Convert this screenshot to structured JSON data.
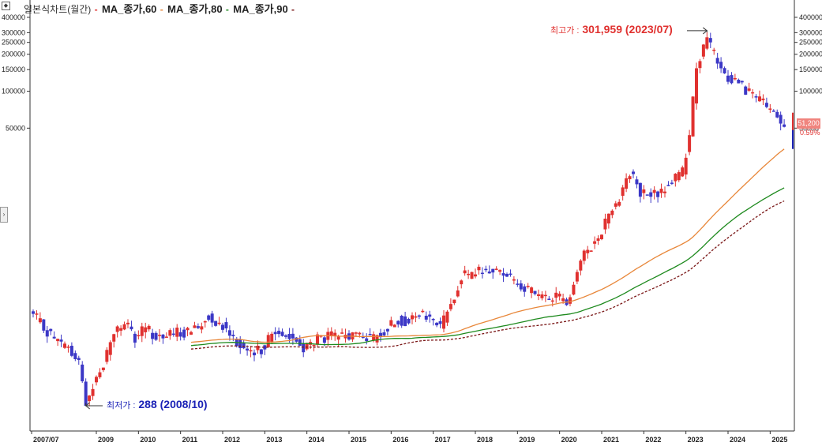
{
  "legend": {
    "title": "일본식차트(월간)",
    "ma60": "MA_종가,60",
    "ma80": "MA_종가,80",
    "ma90": "MA_종가,90"
  },
  "annotations": {
    "high_label": "최고가 :",
    "high_value": "301,959 (2023/07)",
    "low_label": "최저가 :",
    "low_value": "288 (2008/10)"
  },
  "last_price": {
    "value": "51,200",
    "change": "0.59%"
  },
  "colors": {
    "up": "#e0312f",
    "down": "#3b37c6",
    "ma60": "#e8873a",
    "ma80": "#1e8a1e",
    "ma90": "#7a1717",
    "high_text": "#e0312f",
    "low_text": "#1b22b6"
  },
  "icons": {
    "corner": "collapse-icon",
    "side": "expand-arrow-icon"
  },
  "chart_data": {
    "type": "candlestick",
    "title": "일본식차트(월간)",
    "y_scale": "log",
    "ylim": [
      250,
      450000
    ],
    "y_ticks": [
      400000,
      300000,
      250000,
      200000,
      150000,
      100000,
      50000
    ],
    "x_labels": [
      "2007/07",
      "2009",
      "2010",
      "2011",
      "2012",
      "2013",
      "2014",
      "2015",
      "2016",
      "2017",
      "2018",
      "2019",
      "2020",
      "2021",
      "2022",
      "2023",
      "2024",
      "2025"
    ],
    "grid": false,
    "legend_position": "top-left",
    "anchors": [
      [
        "2007-07",
        1500
      ],
      [
        "2007-10",
        1200
      ],
      [
        "2008-02",
        900
      ],
      [
        "2008-05",
        800
      ],
      [
        "2008-08",
        600
      ],
      [
        "2008-10",
        300
      ],
      [
        "2008-12",
        400
      ],
      [
        "2009-03",
        600
      ],
      [
        "2009-06",
        1100
      ],
      [
        "2009-09",
        1300
      ],
      [
        "2009-12",
        950
      ],
      [
        "2010-03",
        1200
      ],
      [
        "2010-06",
        1000
      ],
      [
        "2010-10",
        1050
      ],
      [
        "2011-03",
        1100
      ],
      [
        "2011-06",
        1200
      ],
      [
        "2011-09",
        1500
      ],
      [
        "2011-12",
        1300
      ],
      [
        "2012-03",
        1100
      ],
      [
        "2012-06",
        850
      ],
      [
        "2012-09",
        700
      ],
      [
        "2012-12",
        800
      ],
      [
        "2013-03",
        1050
      ],
      [
        "2013-06",
        1100
      ],
      [
        "2013-09",
        950
      ],
      [
        "2013-12",
        800
      ],
      [
        "2014-04",
        950
      ],
      [
        "2014-08",
        1000
      ],
      [
        "2014-12",
        1000
      ],
      [
        "2015-04",
        1050
      ],
      [
        "2015-08",
        950
      ],
      [
        "2015-12",
        1200
      ],
      [
        "2016-03",
        1400
      ],
      [
        "2016-06",
        1300
      ],
      [
        "2016-09",
        1500
      ],
      [
        "2016-12",
        1400
      ],
      [
        "2017-03",
        1200
      ],
      [
        "2017-06",
        1900
      ],
      [
        "2017-09",
        3100
      ],
      [
        "2017-12",
        3200
      ],
      [
        "2018-03",
        3500
      ],
      [
        "2018-06",
        3400
      ],
      [
        "2018-09",
        3400
      ],
      [
        "2018-12",
        2900
      ],
      [
        "2019-03",
        2500
      ],
      [
        "2019-06",
        2200
      ],
      [
        "2019-09",
        2000
      ],
      [
        "2019-12",
        2200
      ],
      [
        "2020-03",
        1900
      ],
      [
        "2020-06",
        3500
      ],
      [
        "2020-09",
        5200
      ],
      [
        "2020-12",
        6500
      ],
      [
        "2021-03",
        10000
      ],
      [
        "2021-06",
        14000
      ],
      [
        "2021-09",
        22000
      ],
      [
        "2021-12",
        15000
      ],
      [
        "2022-03",
        14000
      ],
      [
        "2022-06",
        15000
      ],
      [
        "2022-09",
        19000
      ],
      [
        "2022-12",
        22000
      ],
      [
        "2023-02",
        45000
      ],
      [
        "2023-04",
        160000
      ],
      [
        "2023-07",
        260000
      ],
      [
        "2023-09",
        200000
      ],
      [
        "2023-12",
        130000
      ],
      [
        "2024-03",
        125000
      ],
      [
        "2024-06",
        105000
      ],
      [
        "2024-09",
        88000
      ],
      [
        "2024-12",
        75000
      ],
      [
        "2025-03",
        62000
      ],
      [
        "2025-04",
        51200
      ]
    ],
    "series": [
      {
        "name": "MA_종가,60",
        "period": 60
      },
      {
        "name": "MA_종가,80",
        "period": 80
      },
      {
        "name": "MA_종가,90",
        "period": 90
      }
    ],
    "max": {
      "value": 301959,
      "date": "2023/07"
    },
    "min": {
      "value": 288,
      "date": "2008/10"
    },
    "last": 51200
  }
}
